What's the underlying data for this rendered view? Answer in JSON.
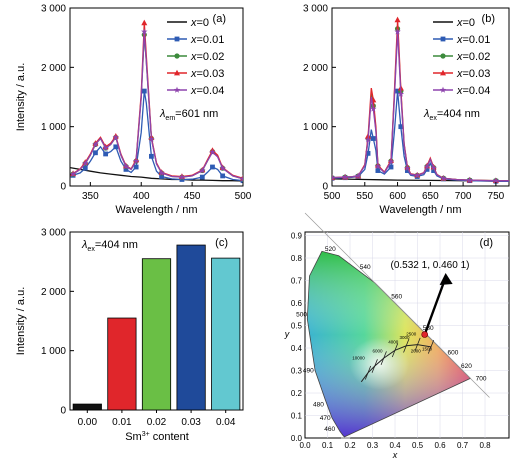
{
  "panels": {
    "a": {
      "tag": "(a)",
      "annotation": {
        "main": "λ",
        "sub": "em",
        "rest": "=601 nm"
      },
      "chart_data": {
        "type": "line",
        "xlabel": "Wavelength / nm",
        "ylabel": "Intensity / a.u.",
        "xlim": [
          330,
          500
        ],
        "ylim": [
          0,
          3000
        ],
        "xticks": [
          350,
          400,
          450,
          500
        ],
        "yticks": [
          0,
          1000,
          2000,
          3000
        ],
        "ytick_labels": [
          "0",
          "1 000",
          "2 000",
          "3 000"
        ],
        "legend": "top-right",
        "series": [
          {
            "name": "x=0",
            "label_var": "x",
            "label_val": "=0",
            "color": "#111111",
            "marker": "none",
            "x": [
              330,
              340,
              350,
              360,
              370,
              380,
              390,
              400,
              410,
              420,
              430,
              440,
              450,
              460,
              470,
              480,
              490,
              500
            ],
            "y": [
              310,
              280,
              250,
              220,
              200,
              180,
              160,
              150,
              130,
              120,
              110,
              110,
              100,
              100,
              95,
              90,
              90,
              85
            ]
          },
          {
            "name": "x=0.01",
            "label_var": "x",
            "label_val": "=0.01",
            "color": "#2e5bb4",
            "marker": "square",
            "x": [
              333,
              340,
              345,
              350,
              355,
              360,
              365,
              370,
              375,
              380,
              385,
              390,
              395,
              400,
              403,
              405,
              410,
              415,
              420,
              430,
              440,
              450,
              460,
              465,
              470,
              475,
              480,
              490,
              500
            ],
            "y": [
              180,
              220,
              300,
              420,
              560,
              660,
              540,
              580,
              660,
              420,
              280,
              230,
              320,
              900,
              1600,
              1400,
              500,
              250,
              160,
              120,
              110,
              115,
              150,
              230,
              320,
              280,
              170,
              110,
              90
            ]
          },
          {
            "name": "x=0.02",
            "label_var": "x",
            "label_val": "=0.02",
            "color": "#3c8a3c",
            "marker": "circle",
            "x": [
              333,
              340,
              345,
              350,
              355,
              360,
              365,
              370,
              375,
              380,
              385,
              390,
              395,
              400,
              403,
              405,
              410,
              415,
              420,
              430,
              440,
              450,
              460,
              465,
              470,
              475,
              480,
              490,
              500
            ],
            "y": [
              200,
              280,
              380,
              520,
              700,
              800,
              640,
              700,
              820,
              520,
              330,
              280,
              420,
              1500,
              2550,
              2100,
              800,
              380,
              220,
              160,
              150,
              170,
              260,
              420,
              580,
              500,
              300,
              170,
              120
            ]
          },
          {
            "name": "x=0.03",
            "label_var": "x",
            "label_val": "=0.03",
            "color": "#e0262b",
            "marker": "triangle",
            "x": [
              333,
              340,
              345,
              350,
              355,
              360,
              365,
              370,
              375,
              380,
              385,
              390,
              395,
              400,
              403,
              405,
              410,
              415,
              420,
              430,
              440,
              450,
              460,
              465,
              470,
              475,
              480,
              490,
              500
            ],
            "y": [
              210,
              290,
              400,
              540,
              720,
              820,
              660,
              720,
              840,
              540,
              340,
              290,
              440,
              1550,
              2750,
              2200,
              820,
              390,
              230,
              170,
              160,
              180,
              270,
              440,
              600,
              520,
              310,
              180,
              130
            ]
          },
          {
            "name": "x=0.04",
            "label_var": "x",
            "label_val": "=0.04",
            "color": "#8e44ad",
            "marker": "star",
            "x": [
              333,
              340,
              345,
              350,
              355,
              360,
              365,
              370,
              375,
              380,
              385,
              390,
              395,
              400,
              403,
              405,
              410,
              415,
              420,
              430,
              440,
              450,
              460,
              465,
              470,
              475,
              480,
              490,
              500
            ],
            "y": [
              200,
              280,
              380,
              520,
              700,
              800,
              640,
              700,
              820,
              520,
              330,
              280,
              420,
              1480,
              2600,
              2100,
              790,
              370,
              220,
              160,
              150,
              170,
              260,
              420,
              570,
              490,
              300,
              170,
              120
            ]
          }
        ]
      }
    },
    "b": {
      "tag": "(b)",
      "annotation": {
        "main": "λ",
        "sub": "ex",
        "rest": "=404 nm"
      },
      "chart_data": {
        "type": "line",
        "xlabel": "Wavelength / nm",
        "xlim": [
          500,
          770
        ],
        "ylim": [
          0,
          3000
        ],
        "xticks": [
          500,
          550,
          600,
          650,
          700,
          750
        ],
        "yticks": [
          0,
          1000,
          2000,
          3000
        ],
        "ytick_labels": [
          "0",
          "1 000",
          "2 000",
          "3 000"
        ],
        "legend": "top-right",
        "series": [
          {
            "name": "x=0",
            "label_var": "x",
            "label_val": "=0",
            "color": "#111111",
            "marker": "none",
            "x": [
              500,
              550,
              600,
              650,
              700,
              750,
              770
            ],
            "y": [
              120,
              110,
              100,
              95,
              90,
              85,
              85
            ]
          },
          {
            "name": "x=0.01",
            "label_var": "x",
            "label_val": "=0.01",
            "color": "#2e5bb4",
            "marker": "square",
            "x": [
              500,
              510,
              520,
              530,
              540,
              550,
              555,
              560,
              563,
              567,
              570,
              580,
              590,
              595,
              600,
              602,
              605,
              610,
              615,
              620,
              630,
              640,
              645,
              650,
              655,
              660,
              670,
              690,
              710,
              730,
              750,
              770
            ],
            "y": [
              130,
              135,
              140,
              145,
              160,
              280,
              550,
              950,
              800,
              600,
              260,
              200,
              320,
              900,
              1600,
              1350,
              1000,
              500,
              260,
              180,
              160,
              190,
              280,
              380,
              260,
              170,
              120,
              100,
              90,
              85,
              80,
              80
            ]
          },
          {
            "name": "x=0.02",
            "label_var": "x",
            "label_val": "=0.02",
            "color": "#3c8a3c",
            "marker": "circle",
            "x": [
              500,
              510,
              520,
              530,
              540,
              550,
              555,
              560,
              563,
              567,
              570,
              580,
              590,
              595,
              600,
              602,
              605,
              610,
              615,
              620,
              630,
              640,
              645,
              650,
              655,
              660,
              670,
              690,
              710,
              730,
              750,
              770
            ],
            "y": [
              140,
              145,
              150,
              155,
              170,
              350,
              800,
              1550,
              1350,
              950,
              340,
              230,
              420,
              1500,
              2650,
              2250,
              1600,
              700,
              310,
              200,
              180,
              220,
              330,
              450,
              310,
              190,
              130,
              110,
              100,
              95,
              90,
              90
            ]
          },
          {
            "name": "x=0.03",
            "label_var": "x",
            "label_val": "=0.03",
            "color": "#e0262b",
            "marker": "triangle",
            "x": [
              500,
              510,
              520,
              530,
              540,
              550,
              555,
              560,
              563,
              567,
              570,
              580,
              590,
              595,
              600,
              602,
              605,
              610,
              615,
              620,
              630,
              640,
              645,
              650,
              655,
              660,
              670,
              690,
              710,
              730,
              750,
              770
            ],
            "y": [
              140,
              145,
              150,
              155,
              170,
              360,
              840,
              1650,
              1450,
              1000,
              350,
              235,
              430,
              1550,
              2800,
              2350,
              1650,
              720,
              320,
              205,
              185,
              225,
              340,
              470,
              320,
              195,
              130,
              110,
              100,
              95,
              90,
              90
            ]
          },
          {
            "name": "x=0.04",
            "label_var": "x",
            "label_val": "=0.04",
            "color": "#8e44ad",
            "marker": "star",
            "x": [
              500,
              510,
              520,
              530,
              540,
              550,
              555,
              560,
              563,
              567,
              570,
              580,
              590,
              595,
              600,
              602,
              605,
              610,
              615,
              620,
              630,
              640,
              645,
              650,
              655,
              660,
              670,
              690,
              710,
              730,
              750,
              770
            ],
            "y": [
              140,
              145,
              150,
              155,
              170,
              340,
              780,
              1500,
              1300,
              920,
              330,
              225,
              410,
              1450,
              2600,
              2200,
              1550,
              690,
              300,
              198,
              178,
              218,
              325,
              445,
              305,
              188,
              128,
              108,
              98,
              93,
              88,
              88
            ]
          }
        ]
      }
    },
    "c": {
      "tag": "(c)",
      "annotation": {
        "main": "λ",
        "sub": "ex",
        "rest": "=404 nm"
      },
      "xlabel_main": "Sm",
      "xlabel_sup": "3+",
      "xlabel_rest": " content",
      "chart_data": {
        "type": "bar",
        "ylabel": "Intensity / a.u.",
        "categories": [
          "0.00",
          "0.01",
          "0.02",
          "0.03",
          "0.04"
        ],
        "values": [
          100,
          1550,
          2550,
          2780,
          2560
        ],
        "colors": [
          "#111111",
          "#e0262b",
          "#6abf45",
          "#1f4a9a",
          "#62c8d0"
        ],
        "ylim": [
          0,
          3000
        ],
        "yticks": [
          0,
          1000,
          2000,
          3000
        ],
        "ytick_labels": [
          "0",
          "1 000",
          "2 000",
          "3 000"
        ]
      }
    },
    "d": {
      "tag": "(d)",
      "coord_label": "(0.532 1, 0.460 1)",
      "coord": [
        0.532,
        0.46
      ],
      "xlabel": "x",
      "ylabel": "y",
      "xticks": [
        "0.0",
        "0.1",
        "0.2",
        "0.3",
        "0.4",
        "0.5",
        "0.6",
        "0.7",
        "0.8"
      ],
      "yticks": [
        "0.0",
        "0.1",
        "0.2",
        "0.3",
        "0.4",
        "0.5",
        "0.6",
        "0.7",
        "0.8",
        "0.9"
      ],
      "wavelengths": [
        "460",
        "470",
        "480",
        "490",
        "500",
        "520",
        "540",
        "560",
        "580",
        "600",
        "620",
        "700"
      ],
      "planck_labels": [
        "10000",
        "6000",
        "4000",
        "3000",
        "2500",
        "2000",
        "1500"
      ]
    }
  }
}
